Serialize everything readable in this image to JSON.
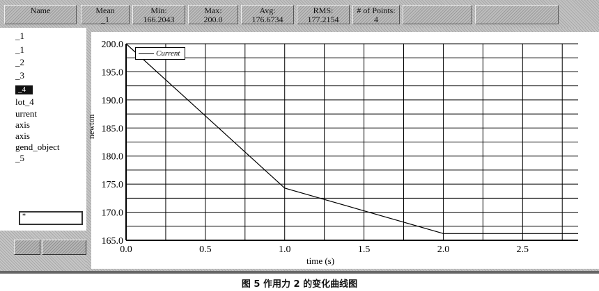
{
  "statusbar": {
    "cells": [
      {
        "label": "Name",
        "value": ""
      },
      {
        "label": "Mean",
        "value": "_1"
      },
      {
        "label": "Min:",
        "value": "166.2043"
      },
      {
        "label": "Max:",
        "value": "200.0"
      },
      {
        "label": "Avg:",
        "value": "176.6734"
      },
      {
        "label": "RMS:",
        "value": "177.2154"
      },
      {
        "label": "# of Points:",
        "value": "4"
      },
      {
        "label": "",
        "value": ""
      },
      {
        "label": "",
        "value": ""
      }
    ]
  },
  "object_tree": {
    "items": [
      "_1",
      "_1",
      "_2",
      "_3",
      "_4",
      "lot_4",
      "urrent",
      "axis",
      "axis",
      "gend_object",
      "_5"
    ],
    "selected_index": 4,
    "input_value": "*"
  },
  "chart_data": {
    "type": "line",
    "title": "",
    "xlabel": "time (s)",
    "ylabel": "newton",
    "xlim": [
      0.0,
      2.85
    ],
    "ylim": [
      165.0,
      200.0
    ],
    "x_ticks": [
      0.0,
      0.5,
      1.0,
      1.5,
      2.0,
      2.5
    ],
    "x_tick_labels": [
      "0.0",
      "0.5",
      "1.0",
      "1.5",
      "2.0",
      "2.5"
    ],
    "y_ticks": [
      165.0,
      170.0,
      175.0,
      180.0,
      185.0,
      190.0,
      195.0,
      200.0
    ],
    "y_tick_labels": [
      "165.0",
      "170.0",
      "175.0",
      "180.0",
      "185.0",
      "190.0",
      "195.0",
      "200.0"
    ],
    "grid": true,
    "legend_position": "top-left",
    "series": [
      {
        "name": "Current",
        "color": "#000000",
        "x": [
          0.0,
          1.0,
          2.0,
          2.85
        ],
        "y": [
          200.0,
          174.3,
          166.2,
          166.2
        ]
      }
    ]
  },
  "caption": "图 5   作用力 2 的变化曲线图"
}
